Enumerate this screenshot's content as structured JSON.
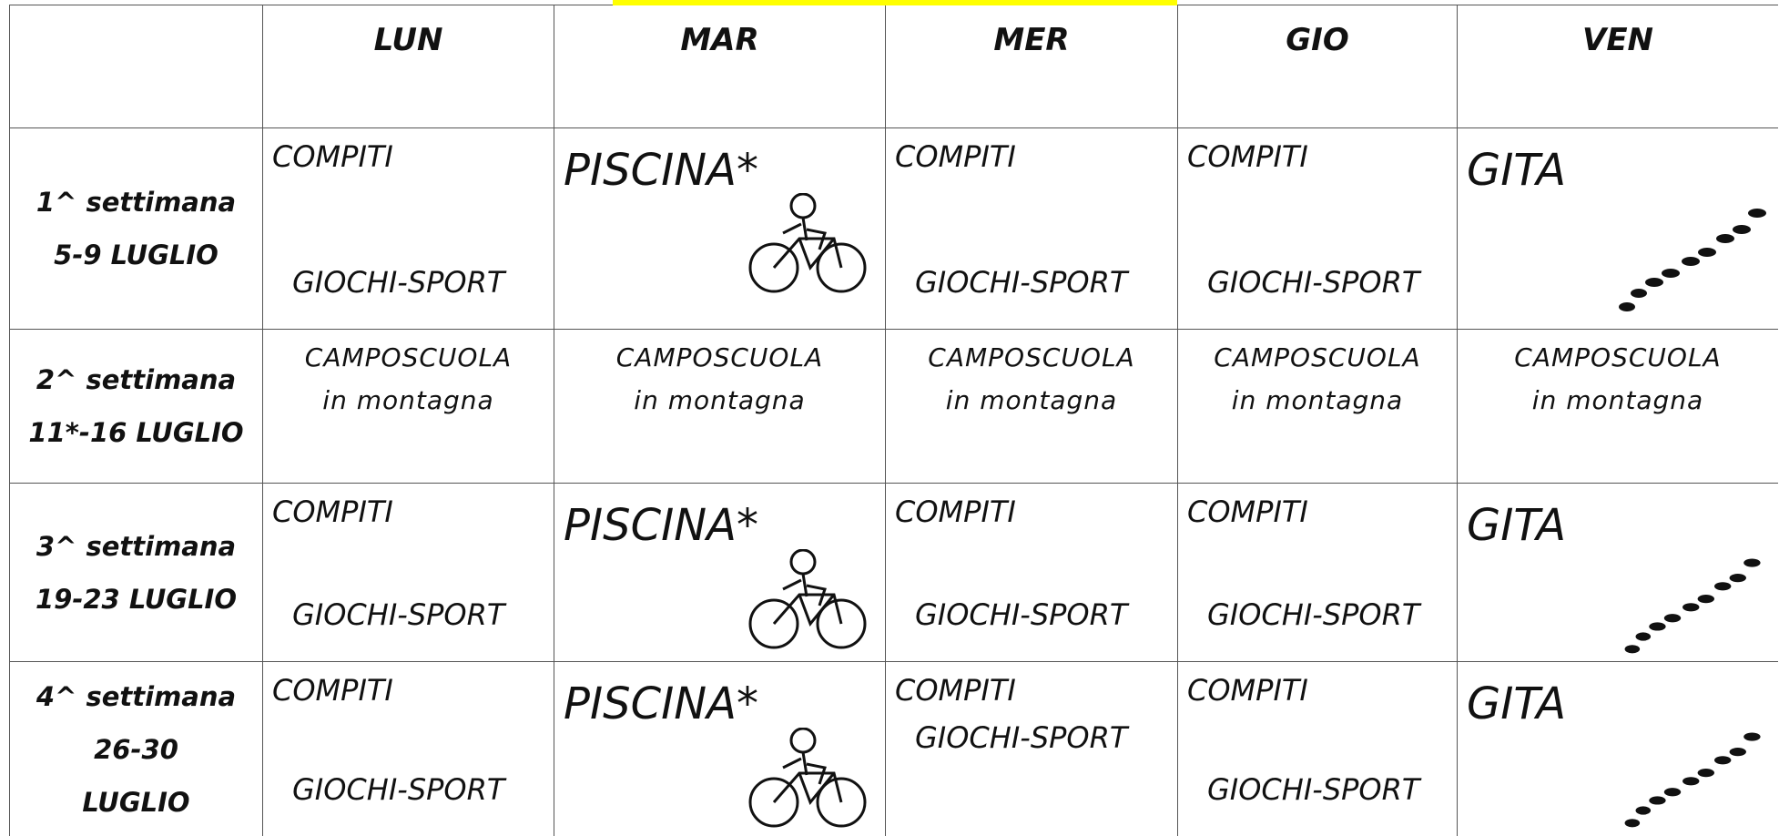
{
  "header": {
    "days": [
      "LUN",
      "MAR",
      "MER",
      "GIO",
      "VEN"
    ]
  },
  "table": {
    "rows": [
      {
        "week": [
          "1^ settimana",
          "5-9 LUGLIO"
        ],
        "cells": [
          [
            "COMPITI",
            "GIOCHI-SPORT"
          ],
          [
            "PISCINA*"
          ],
          [
            "COMPITI",
            "GIOCHI-SPORT"
          ],
          [
            "COMPITI",
            "GIOCHI-SPORT"
          ],
          [
            "GITA"
          ]
        ]
      },
      {
        "week": [
          "2^ settimana",
          "11*-16 LUGLIO"
        ],
        "cells": [
          [
            "CAMPOSCUOLA",
            "in montagna"
          ],
          [
            "CAMPOSCUOLA",
            "in montagna"
          ],
          [
            "CAMPOSCUOLA",
            "in montagna"
          ],
          [
            "CAMPOSCUOLA",
            "in montagna"
          ],
          [
            "CAMPOSCUOLA",
            "in montagna"
          ]
        ]
      },
      {
        "week": [
          "3^ settimana",
          "19-23 LUGLIO"
        ],
        "cells": [
          [
            "COMPITI",
            "GIOCHI-SPORT"
          ],
          [
            "PISCINA*"
          ],
          [
            "COMPITI",
            "GIOCHI-SPORT"
          ],
          [
            "COMPITI",
            "GIOCHI-SPORT"
          ],
          [
            "GITA"
          ]
        ]
      },
      {
        "week": [
          "4^ settimana",
          "26-30",
          "LUGLIO"
        ],
        "cells": [
          [
            "COMPITI",
            "GIOCHI-SPORT"
          ],
          [
            "PISCINA*"
          ],
          [
            "COMPITI",
            "GIOCHI-SPORT"
          ],
          [
            "COMPITI",
            "GIOCHI-SPORT"
          ],
          [
            "GITA"
          ]
        ]
      }
    ]
  }
}
